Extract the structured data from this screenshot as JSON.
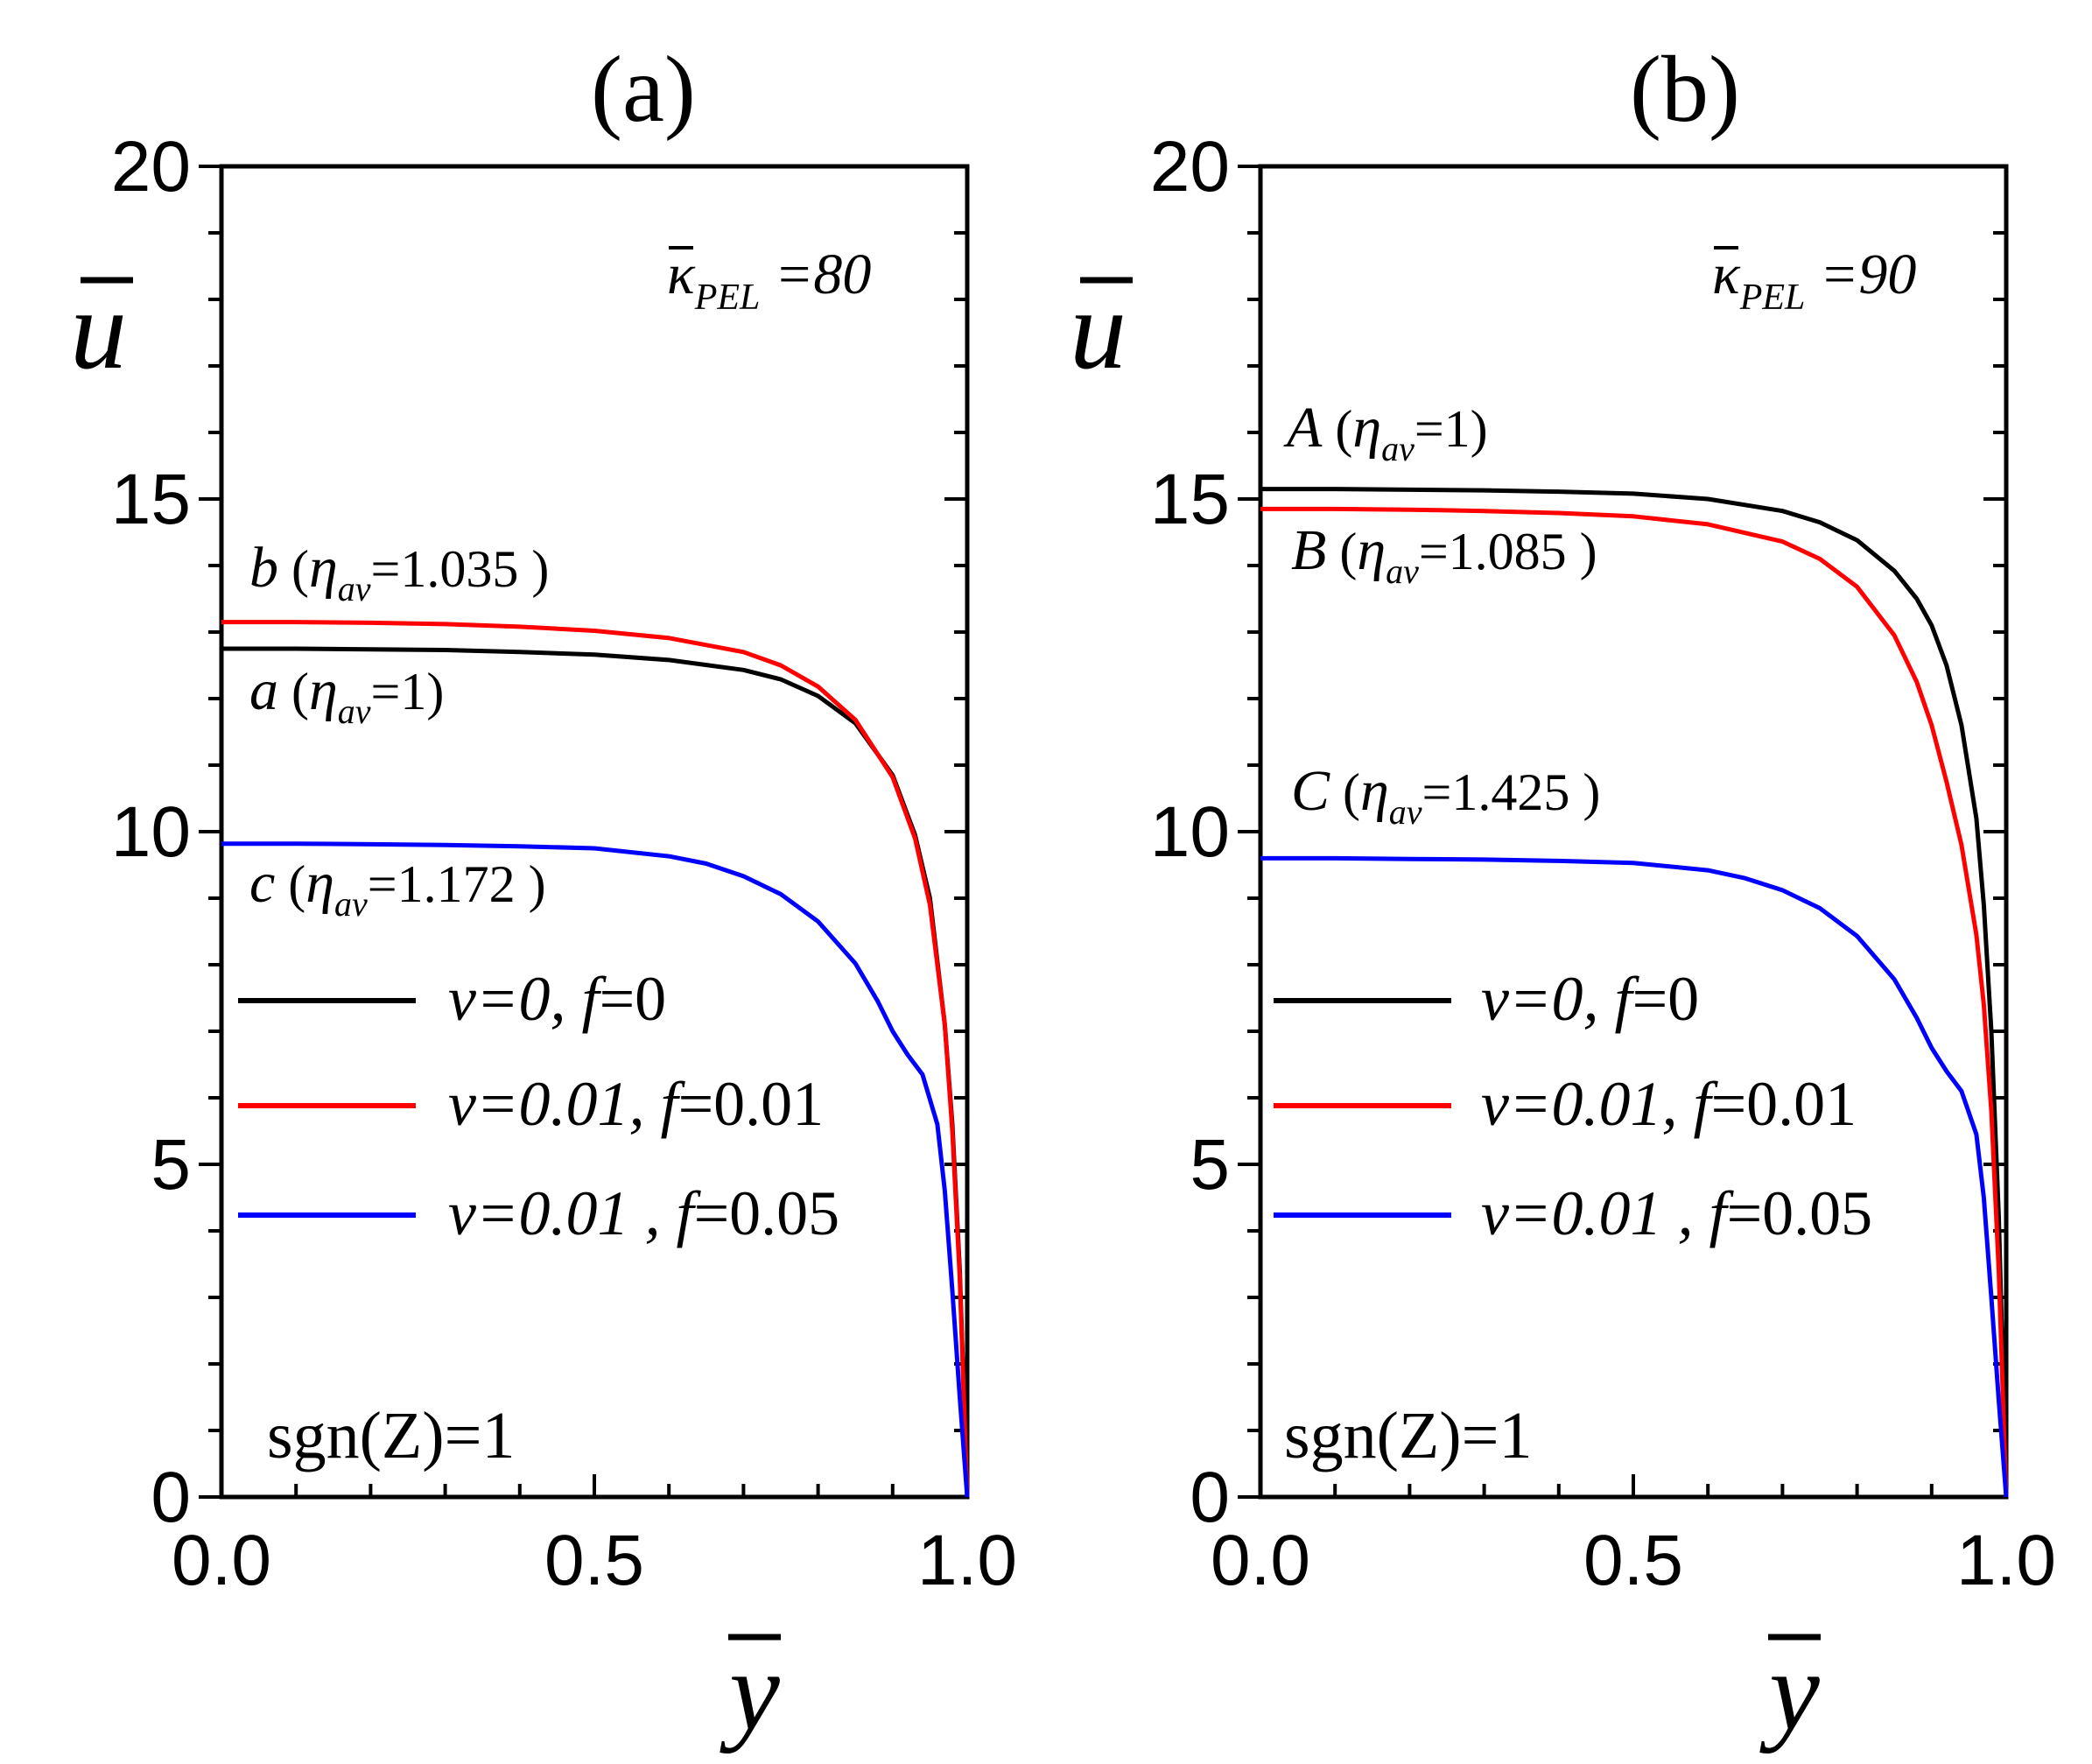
{
  "chart_data": [
    {
      "type": "line",
      "panel_label": "(a)",
      "xlabel": "y",
      "ylabel": "u",
      "xlim": [
        0,
        1
      ],
      "ylim": [
        0,
        20
      ],
      "xticks": [
        "0.0",
        "0.5",
        "1.0"
      ],
      "yticks": [
        "0",
        "5",
        "10",
        "15",
        "20"
      ],
      "param": {
        "symbol": "κ",
        "sub": "PEL",
        "value": "=80"
      },
      "sgn_text": "sgn(Z)=1",
      "legend": [
        {
          "nu": "ν=0,",
          "f": "f",
          "fv": "=0",
          "color": "#000000"
        },
        {
          "nu": "ν=0.01,",
          "f": "f",
          "fv": "=0.01",
          "color": "#ff0000"
        },
        {
          "nu": "ν=0.01 ,",
          "f": "f",
          "fv": "=0.05",
          "color": "#0000ff"
        }
      ],
      "annotations": [
        {
          "letter": "b",
          "open": " (",
          "eta": "η",
          "sub": "av",
          "value": "=1.035 )"
        },
        {
          "letter": "a",
          "open": " (",
          "eta": "η",
          "sub": "av",
          "value": "=1)"
        },
        {
          "letter": "c",
          "open": " (",
          "eta": "η",
          "sub": "av",
          "value": "=1.172 )"
        }
      ],
      "series": [
        {
          "name": "a",
          "color": "#000000",
          "x": [
            0,
            0.1,
            0.2,
            0.3,
            0.4,
            0.5,
            0.6,
            0.7,
            0.75,
            0.8,
            0.85,
            0.9,
            0.93,
            0.95,
            0.97,
            0.98,
            0.99,
            1.0
          ],
          "y": [
            12.75,
            12.75,
            12.74,
            12.73,
            12.7,
            12.66,
            12.58,
            12.43,
            12.29,
            12.04,
            11.63,
            10.85,
            9.95,
            9.0,
            7.1,
            5.6,
            3.4,
            0
          ]
        },
        {
          "name": "b",
          "color": "#ff0000",
          "x": [
            0,
            0.1,
            0.2,
            0.3,
            0.4,
            0.5,
            0.6,
            0.7,
            0.75,
            0.8,
            0.85,
            0.9,
            0.93,
            0.95,
            0.97,
            0.98,
            0.99,
            1.0
          ],
          "y": [
            13.15,
            13.15,
            13.14,
            13.12,
            13.08,
            13.02,
            12.91,
            12.7,
            12.5,
            12.18,
            11.68,
            10.82,
            9.9,
            8.9,
            7.1,
            5.5,
            3.3,
            0
          ]
        },
        {
          "name": "c",
          "color": "#0000ff",
          "x": [
            0,
            0.1,
            0.2,
            0.3,
            0.4,
            0.5,
            0.6,
            0.65,
            0.7,
            0.75,
            0.8,
            0.85,
            0.88,
            0.9,
            0.92,
            0.94,
            0.96,
            0.97,
            0.98,
            0.99,
            1.0
          ],
          "y": [
            9.82,
            9.82,
            9.81,
            9.8,
            9.78,
            9.75,
            9.63,
            9.52,
            9.33,
            9.06,
            8.65,
            8.02,
            7.45,
            7.0,
            6.65,
            6.35,
            5.6,
            4.6,
            3.1,
            1.5,
            0
          ]
        }
      ]
    },
    {
      "type": "line",
      "panel_label": "(b)",
      "xlabel": "y",
      "ylabel": "u",
      "xlim": [
        0,
        1
      ],
      "ylim": [
        0,
        20
      ],
      "xticks": [
        "0.0",
        "0.5",
        "1.0"
      ],
      "yticks": [
        "0",
        "5",
        "10",
        "15",
        "20"
      ],
      "param": {
        "symbol": "κ",
        "sub": "PEL",
        "value": "=90"
      },
      "sgn_text": "sgn(Z)=1",
      "legend": [
        {
          "nu": "ν=0,",
          "f": "f",
          "fv": "=0",
          "color": "#000000"
        },
        {
          "nu": "ν=0.01,",
          "f": "f",
          "fv": "=0.01",
          "color": "#ff0000"
        },
        {
          "nu": "ν=0.01 ,",
          "f": "f",
          "fv": "=0.05",
          "color": "#0000ff"
        }
      ],
      "annotations": [
        {
          "letter": "A",
          "open": " (",
          "eta": "η",
          "sub": "av",
          "value": "=1)"
        },
        {
          "letter": "B",
          "open": " (",
          "eta": "η",
          "sub": "av",
          "value": "=1.085 )"
        },
        {
          "letter": "C",
          "open": " (",
          "eta": "η",
          "sub": "av",
          "value": "=1.425 )"
        }
      ],
      "series": [
        {
          "name": "A",
          "color": "#000000",
          "x": [
            0,
            0.1,
            0.2,
            0.3,
            0.4,
            0.5,
            0.6,
            0.7,
            0.75,
            0.8,
            0.85,
            0.88,
            0.9,
            0.92,
            0.94,
            0.96,
            0.97,
            0.98,
            0.99,
            1.0
          ],
          "y": [
            15.15,
            15.15,
            15.14,
            15.13,
            15.11,
            15.08,
            15.0,
            14.82,
            14.65,
            14.38,
            13.92,
            13.5,
            13.1,
            12.5,
            11.6,
            10.2,
            8.9,
            7.0,
            4.2,
            0
          ]
        },
        {
          "name": "B",
          "color": "#ff0000",
          "x": [
            0,
            0.1,
            0.2,
            0.3,
            0.4,
            0.5,
            0.6,
            0.7,
            0.75,
            0.8,
            0.85,
            0.88,
            0.9,
            0.92,
            0.94,
            0.96,
            0.97,
            0.98,
            0.99,
            1.0
          ],
          "y": [
            14.85,
            14.85,
            14.84,
            14.82,
            14.79,
            14.74,
            14.62,
            14.36,
            14.1,
            13.68,
            12.95,
            12.25,
            11.6,
            10.75,
            9.8,
            8.45,
            7.4,
            5.8,
            3.4,
            0
          ]
        },
        {
          "name": "C",
          "color": "#0000ff",
          "x": [
            0,
            0.1,
            0.2,
            0.3,
            0.4,
            0.5,
            0.6,
            0.65,
            0.7,
            0.75,
            0.8,
            0.85,
            0.88,
            0.9,
            0.92,
            0.94,
            0.96,
            0.97,
            0.98,
            0.99,
            1.0
          ],
          "y": [
            9.6,
            9.6,
            9.59,
            9.58,
            9.56,
            9.53,
            9.42,
            9.3,
            9.12,
            8.85,
            8.43,
            7.78,
            7.2,
            6.75,
            6.4,
            6.1,
            5.45,
            4.5,
            3.0,
            1.45,
            0
          ]
        }
      ]
    }
  ]
}
